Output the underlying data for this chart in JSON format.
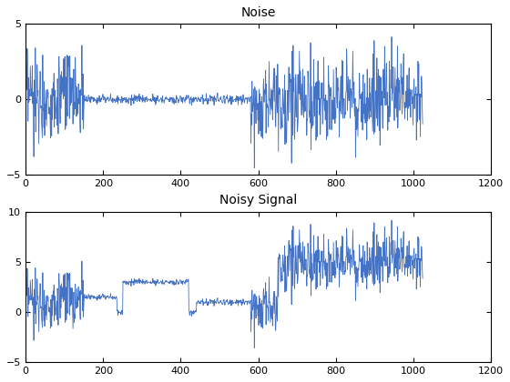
{
  "title1": "Noise",
  "title2": "Noisy Signal",
  "line_color": "#4472C4",
  "xlim": [
    0,
    1200
  ],
  "ylim1": [
    -5,
    5
  ],
  "ylim2": [
    -5,
    10
  ],
  "yticks1": [
    -5,
    0,
    5
  ],
  "yticks2": [
    -5,
    0,
    5,
    10
  ],
  "xticks": [
    0,
    200,
    400,
    600,
    800,
    1000,
    1200
  ],
  "n_samples": 1024,
  "seed": 0,
  "line_width": 0.6,
  "figsize": [
    5.6,
    4.2
  ],
  "dpi": 100,
  "title_fontsize": 10,
  "tick_fontsize": 8,
  "signal_levels": [
    1.0,
    0.0,
    1.5,
    0.0,
    3.0,
    0.0,
    1.0,
    0.0,
    5.0
  ],
  "signal_breaks": [
    120,
    130,
    235,
    250,
    420,
    440,
    630,
    650
  ],
  "noise_amp_low": 0.15,
  "noise_amp_high": 1.5,
  "noise_break1": 150,
  "noise_break2": 580
}
